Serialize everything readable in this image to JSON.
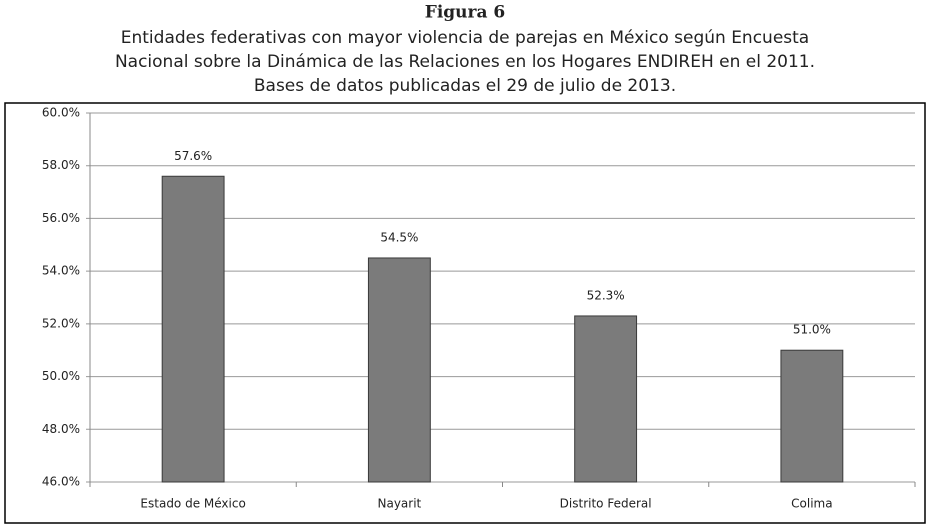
{
  "chart_data": {
    "type": "bar",
    "title": "Figura 6",
    "subtitle": [
      "Entidades federativas con mayor violencia de parejas en México según Encuesta",
      "Nacional sobre la Dinámica de las Relaciones en los Hogares ENDIREH en el 2011.",
      "Bases de datos publicadas el 29 de julio de 2013."
    ],
    "categories": [
      "Estado de México",
      "Nayarit",
      "Distrito Federal",
      "Colima"
    ],
    "values": [
      57.6,
      54.5,
      52.3,
      51.0
    ],
    "value_labels": [
      "57.6%",
      "54.5%",
      "52.3%",
      "51.0%"
    ],
    "color": "#7b7b7b",
    "ylim": [
      46,
      60
    ],
    "yticks": [
      {
        "value": 46,
        "label": "46.0%"
      },
      {
        "value": 48,
        "label": "48.0%"
      },
      {
        "value": 50,
        "label": "50.0%"
      },
      {
        "value": 52,
        "label": "52.0%"
      },
      {
        "value": 54,
        "label": "54.0%"
      },
      {
        "value": 56,
        "label": "56.0%"
      },
      {
        "value": 58,
        "label": "58.0%"
      },
      {
        "value": 60,
        "label": "60.0%"
      }
    ],
    "grid": true
  }
}
